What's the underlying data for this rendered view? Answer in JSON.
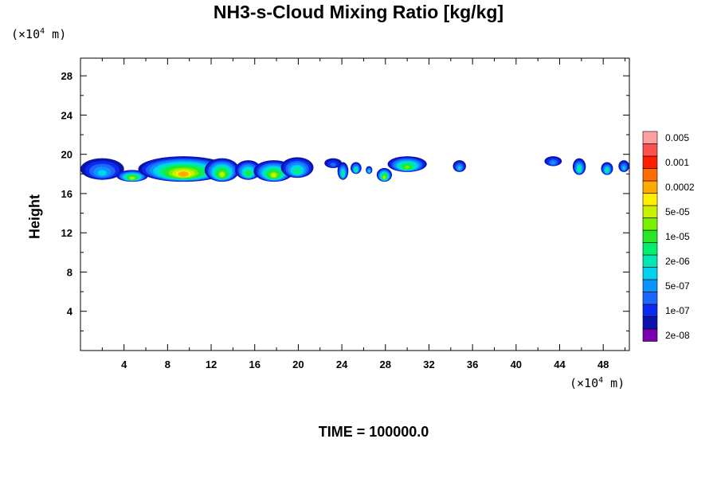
{
  "chart_data": {
    "type": "heatmap",
    "title": "NH3-s-Cloud Mixing Ratio [kg/kg]",
    "ylabel": "Height",
    "x_unit": {
      "prefix": "(×10",
      "exp": "4",
      "suffix": " m)"
    },
    "y_unit": {
      "prefix": "(×10",
      "exp": "4",
      "suffix": " m)"
    },
    "xlim": [
      0,
      50.4
    ],
    "ylim": [
      0,
      29.8
    ],
    "x_ticks": [
      4,
      8,
      12,
      16,
      20,
      24,
      28,
      32,
      36,
      40,
      44,
      48
    ],
    "y_ticks": [
      4,
      8,
      12,
      16,
      20,
      24,
      28
    ],
    "colorbar": {
      "levels": [
        {
          "color": "#7a00b0",
          "label": "2e-08"
        },
        {
          "color": "#0a14a8",
          "label": ""
        },
        {
          "color": "#0a2af0",
          "label": "1e-07"
        },
        {
          "color": "#1e64ff",
          "label": ""
        },
        {
          "color": "#0a96ff",
          "label": "5e-07"
        },
        {
          "color": "#00d2f0",
          "label": ""
        },
        {
          "color": "#00e6b4",
          "label": "2e-06"
        },
        {
          "color": "#00f06e",
          "label": ""
        },
        {
          "color": "#28e628",
          "label": "1e-05"
        },
        {
          "color": "#78f000",
          "label": ""
        },
        {
          "color": "#c8f000",
          "label": "5e-05"
        },
        {
          "color": "#fff000",
          "label": ""
        },
        {
          "color": "#ffaa00",
          "label": "0.0002"
        },
        {
          "color": "#ff6e00",
          "label": ""
        },
        {
          "color": "#ff1e00",
          "label": "0.001"
        },
        {
          "color": "#ff5050",
          "label": ""
        },
        {
          "color": "#ffa0a0",
          "label": "0.005"
        }
      ]
    },
    "cloud_cells": [
      {
        "x0": 0.0,
        "x1": 4.0,
        "y0": 17.4,
        "y1": 19.6,
        "peak": 4
      },
      {
        "x0": 3.3,
        "x1": 6.2,
        "y0": 17.2,
        "y1": 18.4,
        "peak": 9
      },
      {
        "x0": 5.3,
        "x1": 13.6,
        "y0": 17.2,
        "y1": 19.8,
        "peak": 11
      },
      {
        "x0": 11.4,
        "x1": 14.6,
        "y0": 17.2,
        "y1": 19.6,
        "peak": 9
      },
      {
        "x0": 14.2,
        "x1": 16.6,
        "y0": 17.4,
        "y1": 19.4,
        "peak": 7
      },
      {
        "x0": 15.9,
        "x1": 19.6,
        "y0": 17.2,
        "y1": 19.4,
        "peak": 9
      },
      {
        "x0": 18.4,
        "x1": 21.4,
        "y0": 17.6,
        "y1": 19.7,
        "peak": 6
      },
      {
        "x0": 22.4,
        "x1": 24.0,
        "y0": 18.6,
        "y1": 19.6,
        "peak": 2
      },
      {
        "x0": 23.6,
        "x1": 24.6,
        "y0": 17.4,
        "y1": 19.2,
        "peak": 6
      },
      {
        "x0": 24.8,
        "x1": 25.8,
        "y0": 18.0,
        "y1": 19.2,
        "peak": 6
      },
      {
        "x0": 26.2,
        "x1": 26.8,
        "y0": 18.0,
        "y1": 18.8,
        "peak": 5
      },
      {
        "x0": 27.2,
        "x1": 28.6,
        "y0": 17.2,
        "y1": 18.6,
        "peak": 9
      },
      {
        "x0": 28.2,
        "x1": 31.8,
        "y0": 18.2,
        "y1": 19.8,
        "peak": 8
      },
      {
        "x0": 34.2,
        "x1": 35.4,
        "y0": 18.2,
        "y1": 19.4,
        "peak": 4
      },
      {
        "x0": 42.6,
        "x1": 44.2,
        "y0": 18.8,
        "y1": 19.8,
        "peak": 3
      },
      {
        "x0": 45.2,
        "x1": 46.4,
        "y0": 17.9,
        "y1": 19.6,
        "peak": 6
      },
      {
        "x0": 47.8,
        "x1": 48.9,
        "y0": 17.9,
        "y1": 19.2,
        "peak": 6
      },
      {
        "x0": 49.4,
        "x1": 50.4,
        "y0": 18.2,
        "y1": 19.4,
        "peak": 4
      }
    ]
  },
  "footer": {
    "time_label": "TIME = 100000.0"
  }
}
